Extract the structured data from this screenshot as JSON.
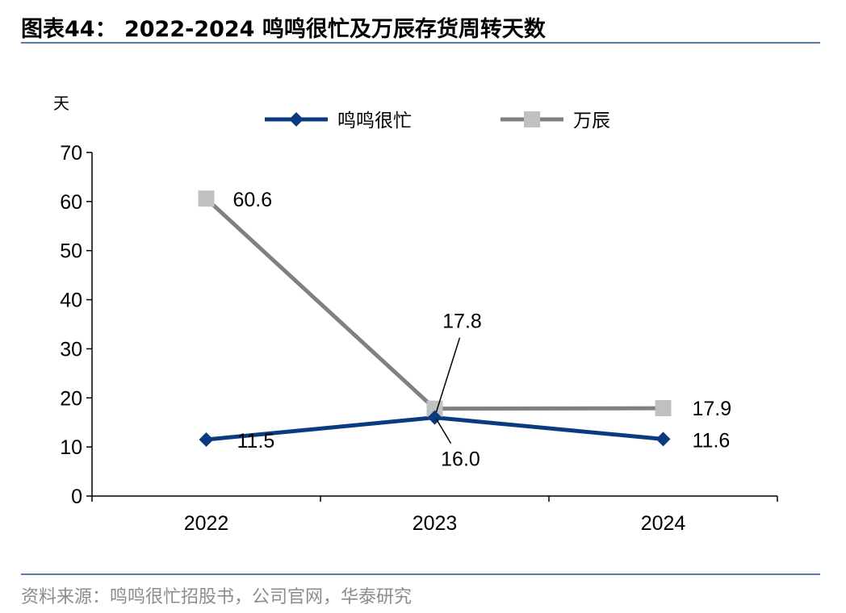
{
  "title": "图表44： 2022-2024 鸣鸣很忙及万辰存货周转天数",
  "source": "资料来源：鸣鸣很忙招股书，公司官网，华泰研究",
  "chart_data": {
    "type": "line",
    "unit": "天",
    "categories": [
      "2022",
      "2023",
      "2024"
    ],
    "ylim": [
      0,
      70
    ],
    "yticks": [
      0,
      10,
      20,
      30,
      40,
      50,
      60,
      70
    ],
    "grid": false,
    "legend_position": "top",
    "series": [
      {
        "name": "鸣鸣很忙",
        "values": [
          11.5,
          16.0,
          11.6
        ],
        "labels": [
          "11.5",
          "16.0",
          "11.6"
        ],
        "color": "#0b3a7e",
        "marker": "diamond"
      },
      {
        "name": "万辰",
        "values": [
          60.6,
          17.8,
          17.9
        ],
        "labels": [
          "60.6",
          "17.8",
          "17.9"
        ],
        "color": "#808080",
        "marker_color": "#c0c0c0",
        "marker": "square"
      }
    ]
  }
}
